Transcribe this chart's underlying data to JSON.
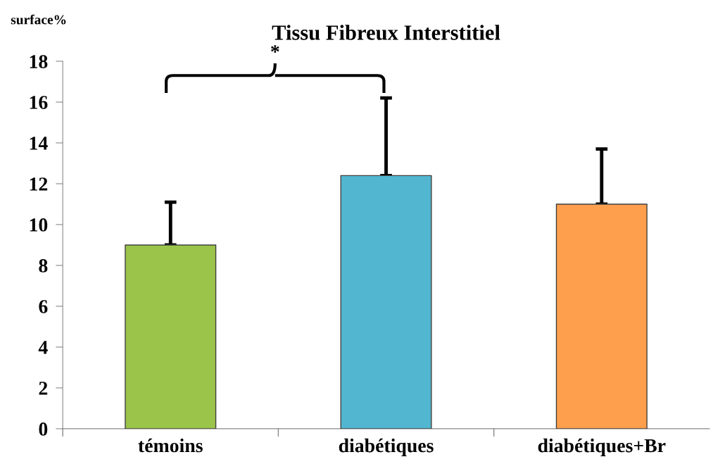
{
  "chart_data": {
    "type": "bar",
    "title": "Tissu Fibreux Interstitiel",
    "ylabel": "surface%",
    "categories": [
      "témoins",
      "diabétiques",
      "diabétiques+Br"
    ],
    "values": [
      9.0,
      12.4,
      11.0
    ],
    "errors": [
      [
        9.0,
        11.1
      ],
      [
        12.4,
        16.2
      ],
      [
        11.0,
        13.7
      ]
    ],
    "colors": [
      "#9bc44a",
      "#52b6d0",
      "#fd9f4c"
    ],
    "ylim": [
      0,
      18
    ],
    "yticks": [
      0,
      2,
      4,
      6,
      8,
      10,
      12,
      14,
      16,
      18
    ],
    "grid": false,
    "legend": false,
    "annotations": [
      "*"
    ]
  }
}
